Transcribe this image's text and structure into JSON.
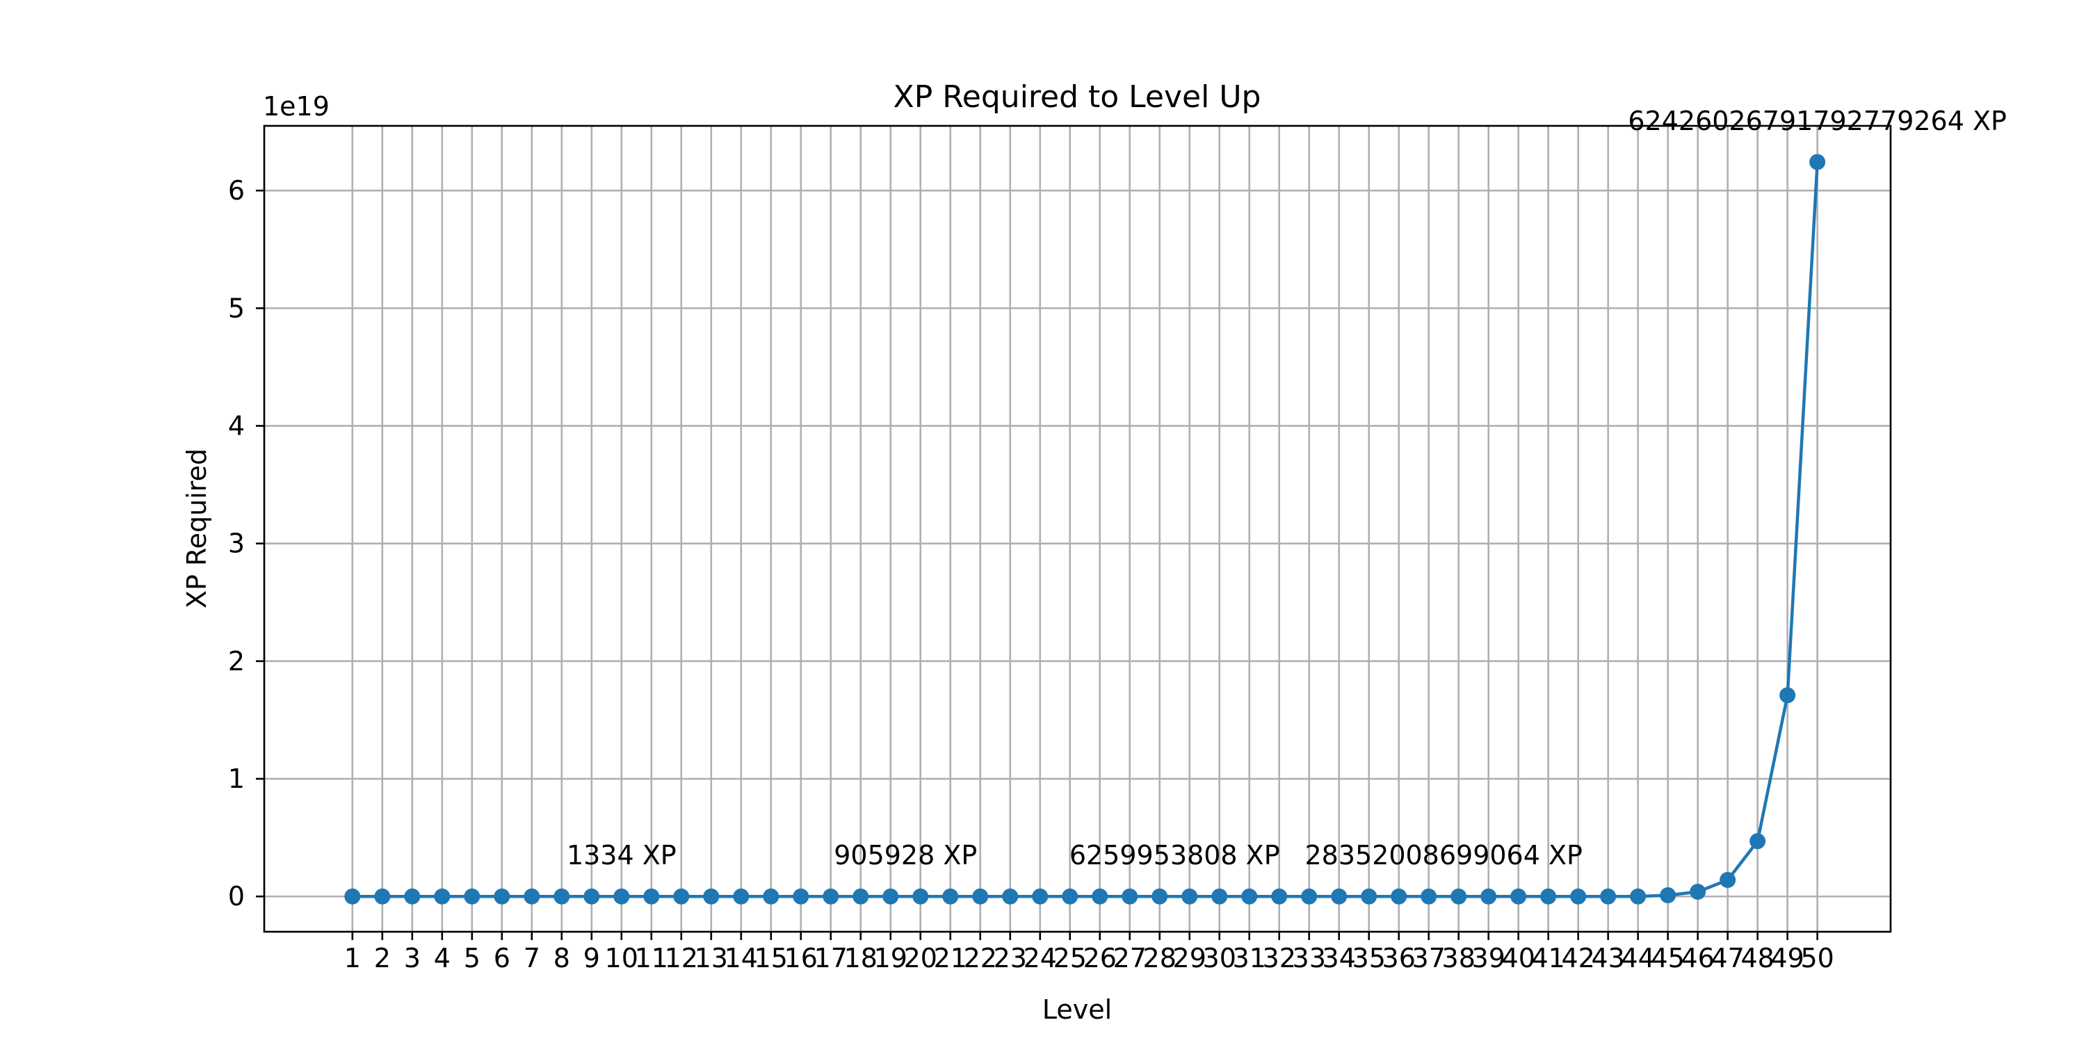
{
  "chart_data": {
    "type": "line",
    "title": "XP Required to Level Up",
    "xlabel": "Level",
    "ylabel": "XP Required",
    "y_scale_label": "1e19",
    "y_scale": 1e+19,
    "x": [
      1,
      2,
      3,
      4,
      5,
      6,
      7,
      8,
      9,
      10,
      11,
      12,
      13,
      14,
      15,
      16,
      17,
      18,
      19,
      20,
      21,
      22,
      23,
      24,
      25,
      26,
      27,
      28,
      29,
      30,
      31,
      32,
      33,
      34,
      35,
      36,
      37,
      38,
      39,
      40,
      41,
      42,
      43,
      44,
      45,
      46,
      47,
      48,
      49,
      50
    ],
    "series": [
      {
        "values": [
          0,
          0,
          0,
          0,
          0,
          0,
          0,
          1334,
          0,
          0,
          0,
          0,
          0,
          0,
          0,
          0,
          0,
          905928,
          0,
          0,
          0,
          0,
          0,
          0,
          0,
          0,
          0,
          0,
          6259953808,
          0,
          0,
          0,
          0,
          0,
          0,
          0,
          0,
          0,
          0,
          28352008699064,
          0,
          0,
          0,
          0,
          1e+17,
          4e+17,
          1.4e+18,
          4.7e+18,
          1.71e+19,
          62426026791792779264
        ],
        "color": "#1f77b4"
      }
    ],
    "ylim": [
      -3e+18,
      6.55e+19
    ],
    "xlim": [
      -1.95,
      52.45
    ],
    "yticks": [
      0,
      1,
      2,
      3,
      4,
      5,
      6
    ],
    "grid": true,
    "annotations": [
      {
        "text": "1334 XP",
        "x": 10
      },
      {
        "text": "905928 XP",
        "x": 19.5
      },
      {
        "text": "6259953808 XP",
        "x": 28.5
      },
      {
        "text": "28352008699064 XP",
        "x": 37.5
      },
      {
        "text": "62426026791792779264 XP",
        "x": 50
      }
    ]
  }
}
